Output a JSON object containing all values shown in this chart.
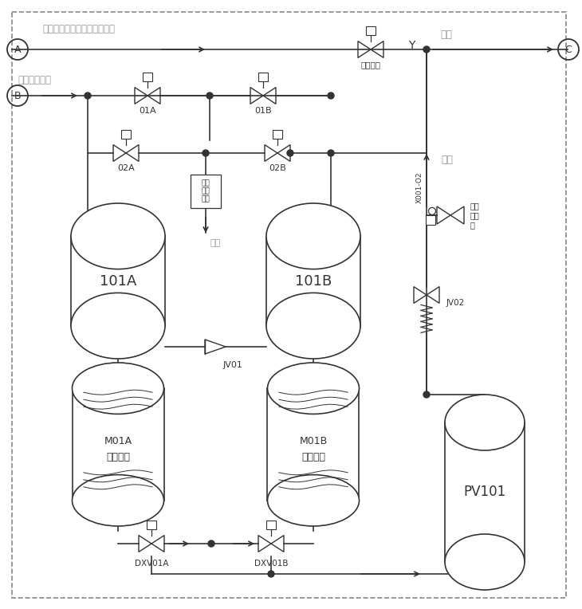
{
  "bg_color": "#ffffff",
  "border_color": "#888888",
  "line_color": "#333333",
  "text_color_dark": "#333333",
  "text_color_gray": "#999999",
  "labels": {
    "top_line": "医院原氧源，如应急备份氧气",
    "A_label": "A",
    "B_label": "B",
    "C_label": "C",
    "supply_Y": "Y",
    "supply_label": "供氧",
    "oxygen_label": "氧气",
    "compressed_air": "医用压缩空气",
    "tank_101A": "101A",
    "tank_101B": "101B",
    "membrane_A1": "M01A",
    "membrane_A2": "膜分离器",
    "membrane_B1": "M01B",
    "membrane_B2": "膜分离器",
    "buffer_tank": "PV101",
    "valve_01A": "01A",
    "valve_01B": "01B",
    "valve_02A": "02A",
    "valve_02B": "02B",
    "valve_JV01": "JV01",
    "valve_DXV01A": "DXV01A",
    "valve_DXV01B": "DXV01B",
    "emergency": "应急供气",
    "waste_gas": "废气",
    "pressure_label": "X001-O2",
    "exhaust_line1": "排堵",
    "exhaust_line2": "拦截",
    "exhaust_line3": "排气",
    "auto_label1": "自动",
    "auto_label2": "调节",
    "auto_label3": "阀"
  }
}
